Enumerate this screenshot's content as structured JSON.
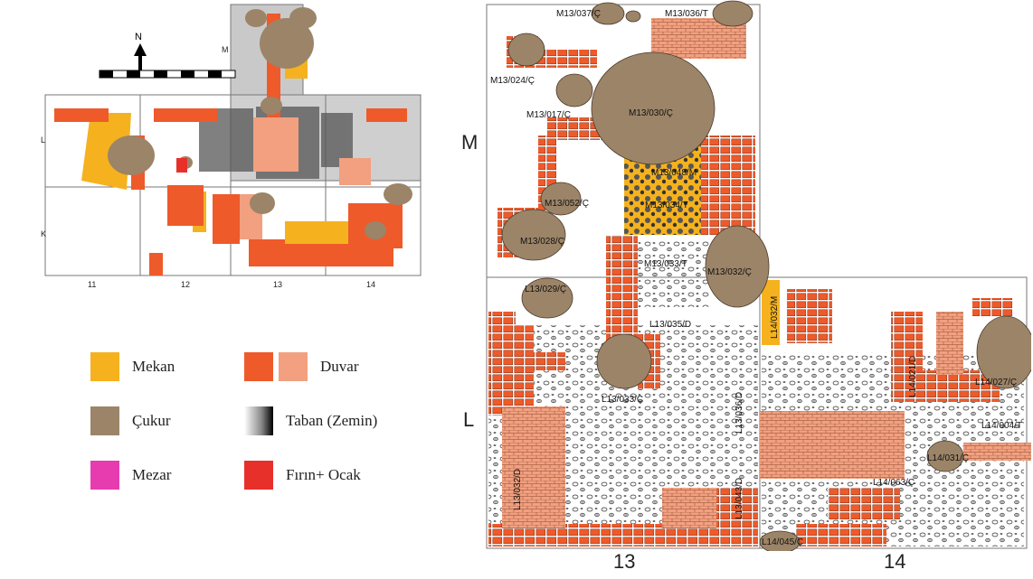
{
  "overview": {
    "north_label": "N",
    "row_labels": [
      "M",
      "L",
      "K"
    ],
    "col_labels": [
      "11",
      "12",
      "13",
      "14"
    ]
  },
  "legend": {
    "items": [
      {
        "label": "Mekan",
        "colors": [
          "#f5b21e"
        ]
      },
      {
        "label": "Duvar",
        "colors": [
          "#ee5a2a",
          "#f2a080"
        ]
      },
      {
        "label": "Çukur",
        "colors": [
          "#9c8468"
        ]
      },
      {
        "label": "Taban (Zemin)",
        "colors": [
          "gradient-gray"
        ]
      },
      {
        "label": "Mezar",
        "colors": [
          "#e63cb0"
        ]
      },
      {
        "label": "Fırın+ Ocak",
        "colors": [
          "#e8302a"
        ]
      }
    ]
  },
  "detail": {
    "row_labels": [
      "M",
      "L"
    ],
    "col_labels": [
      "13",
      "14"
    ],
    "features": [
      "M13/037/Ç",
      "M13/036/T",
      "M13/024/Ç",
      "M13/017/Ç",
      "M13/030/Ç",
      "M13/048/M",
      "M13/034/T",
      "M13/052/Ç",
      "M13/028/Ç",
      "M13/033/T",
      "M13/032/Ç",
      "L13/029/Ç",
      "L13/035/D",
      "L13/033/Ç",
      "L13/036/D",
      "L13/032/D",
      "L13/043/D",
      "L14/032/M",
      "L14/021/D",
      "L14/027/Ç",
      "L14/004/T",
      "L14/031/Ç",
      "L14/063/Ç",
      "L14/045/Ç"
    ]
  },
  "colors": {
    "mekan": "#f5b21e",
    "duvar_dark": "#ee5a2a",
    "duvar_light": "#f2a080",
    "cukur": "#9c8468",
    "mezar": "#e63cb0",
    "firin": "#e8302a",
    "grid_gray": "#c9c9c9"
  }
}
